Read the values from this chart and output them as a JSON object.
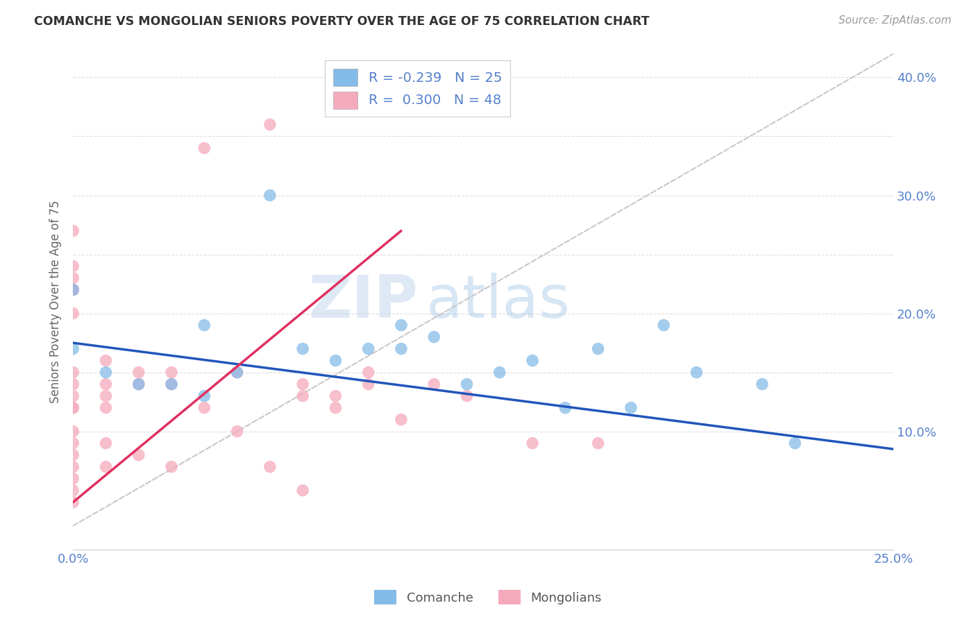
{
  "title": "COMANCHE VS MONGOLIAN SENIORS POVERTY OVER THE AGE OF 75 CORRELATION CHART",
  "source": "Source: ZipAtlas.com",
  "ylabel": "Seniors Poverty Over the Age of 75",
  "xlim": [
    0.0,
    0.25
  ],
  "ylim": [
    0.0,
    0.42
  ],
  "xtick_values": [
    0.0,
    0.05,
    0.1,
    0.15,
    0.2,
    0.25
  ],
  "xtick_labels": [
    "0.0%",
    "",
    "",
    "",
    "",
    "25.0%"
  ],
  "ytick_values": [
    0.0,
    0.1,
    0.15,
    0.2,
    0.25,
    0.3,
    0.35,
    0.4
  ],
  "ytick_labels_right": [
    "",
    "10.0%",
    "",
    "20.0%",
    "",
    "30.0%",
    "",
    "40.0%"
  ],
  "comanche_R": -0.239,
  "comanche_N": 25,
  "mongolian_R": 0.3,
  "mongolian_N": 48,
  "comanche_color": "#85BBE8",
  "mongolian_color": "#F5AABC",
  "comanche_line_color": "#2255BB",
  "mongolian_line_color": "#E03060",
  "diagonal_color": "#C8C8C8",
  "comanche_points_x": [
    0.0,
    0.0,
    0.01,
    0.02,
    0.03,
    0.04,
    0.04,
    0.05,
    0.06,
    0.07,
    0.08,
    0.09,
    0.1,
    0.1,
    0.11,
    0.12,
    0.13,
    0.14,
    0.15,
    0.16,
    0.17,
    0.18,
    0.19,
    0.21,
    0.22
  ],
  "comanche_points_y": [
    0.17,
    0.22,
    0.15,
    0.14,
    0.14,
    0.19,
    0.13,
    0.15,
    0.3,
    0.17,
    0.16,
    0.17,
    0.17,
    0.19,
    0.18,
    0.14,
    0.15,
    0.16,
    0.12,
    0.17,
    0.12,
    0.19,
    0.15,
    0.14,
    0.09
  ],
  "mongolian_points_x": [
    0.0,
    0.0,
    0.0,
    0.0,
    0.0,
    0.0,
    0.0,
    0.0,
    0.0,
    0.0,
    0.0,
    0.0,
    0.0,
    0.0,
    0.0,
    0.0,
    0.0,
    0.0,
    0.01,
    0.01,
    0.01,
    0.01,
    0.01,
    0.01,
    0.02,
    0.02,
    0.02,
    0.03,
    0.03,
    0.03,
    0.04,
    0.04,
    0.05,
    0.05,
    0.06,
    0.06,
    0.07,
    0.07,
    0.07,
    0.08,
    0.08,
    0.09,
    0.09,
    0.1,
    0.11,
    0.12,
    0.14,
    0.16
  ],
  "mongolian_points_y": [
    0.27,
    0.24,
    0.23,
    0.22,
    0.22,
    0.2,
    0.15,
    0.14,
    0.13,
    0.12,
    0.12,
    0.1,
    0.09,
    0.08,
    0.07,
    0.06,
    0.05,
    0.04,
    0.16,
    0.14,
    0.13,
    0.12,
    0.09,
    0.07,
    0.15,
    0.14,
    0.08,
    0.15,
    0.14,
    0.07,
    0.34,
    0.12,
    0.15,
    0.1,
    0.36,
    0.07,
    0.14,
    0.13,
    0.05,
    0.13,
    0.12,
    0.15,
    0.14,
    0.11,
    0.14,
    0.13,
    0.09,
    0.09
  ],
  "watermark_zip": "ZIP",
  "watermark_atlas": "atlas",
  "background_color": "#FFFFFF",
  "plot_bg_color": "#FFFFFF",
  "grid_color": "#DDDDDD",
  "tick_color": "#5580CC",
  "ylabel_color": "#666666",
  "title_color": "#333333",
  "source_color": "#999999"
}
